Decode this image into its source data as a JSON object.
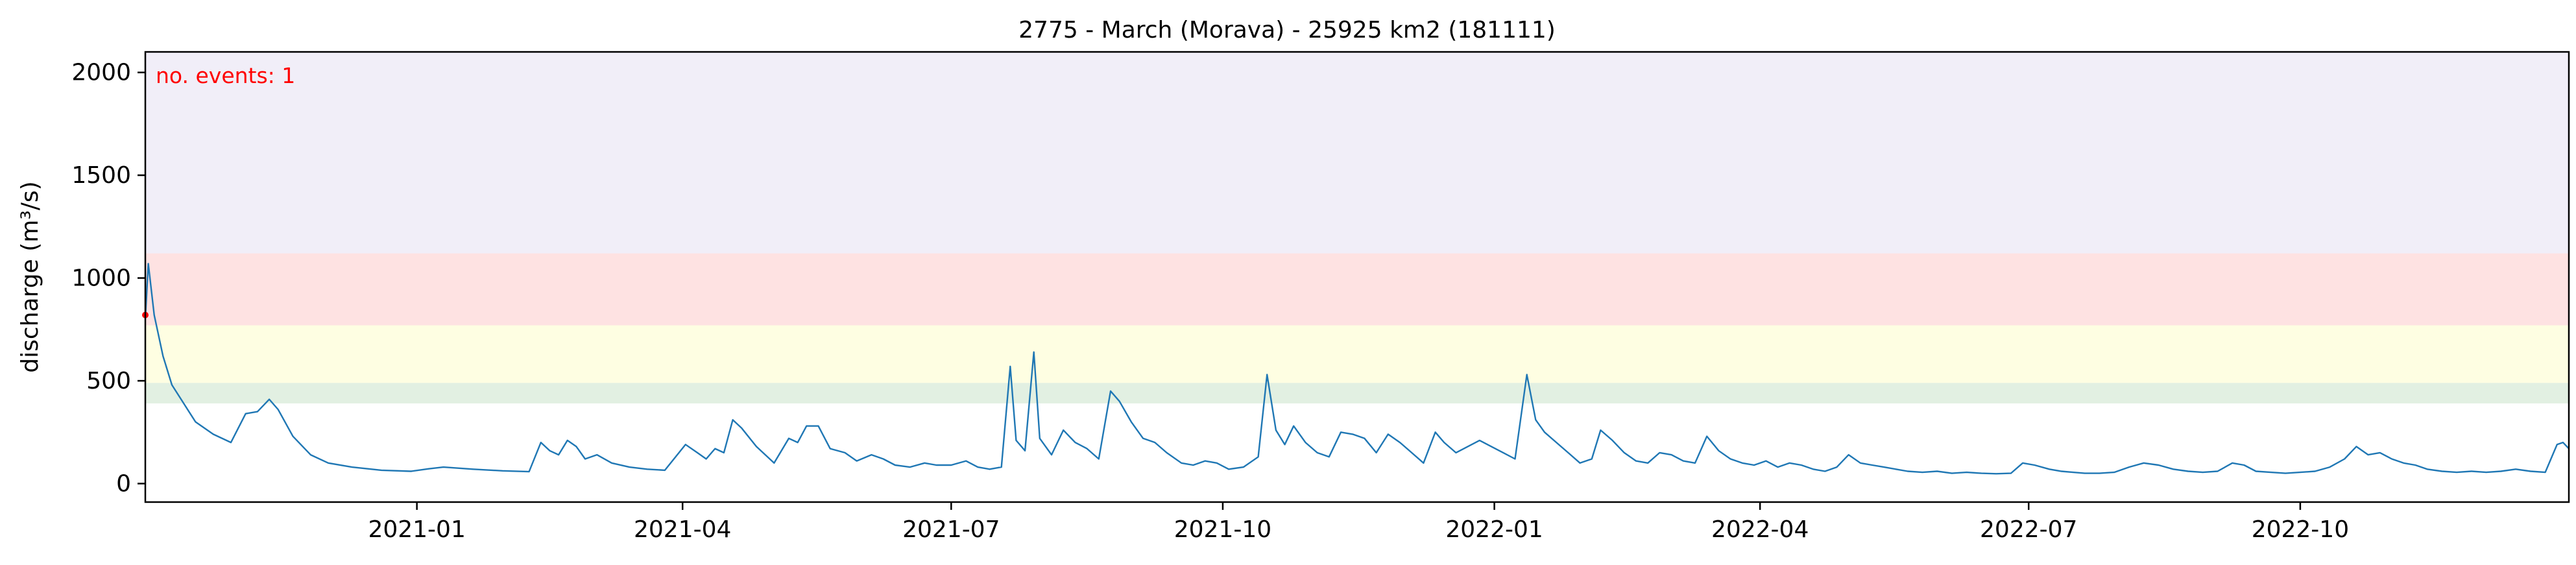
{
  "chart_data": {
    "type": "line",
    "title": "2775 - March (Morava) - 25925 km2 (181111)",
    "xlabel": "",
    "ylabel": "discharge (m³/s)",
    "ylim": [
      -90,
      2100
    ],
    "xlim": [
      "2020-10-01",
      "2022-12-31"
    ],
    "grid": false,
    "yticks": [
      0,
      500,
      1000,
      1500,
      2000
    ],
    "xticks": [
      {
        "date": "2021-01-01",
        "label": "2021-01"
      },
      {
        "date": "2021-04-01",
        "label": "2021-04"
      },
      {
        "date": "2021-07-01",
        "label": "2021-07"
      },
      {
        "date": "2021-10-01",
        "label": "2021-10"
      },
      {
        "date": "2022-01-01",
        "label": "2022-01"
      },
      {
        "date": "2022-04-01",
        "label": "2022-04"
      },
      {
        "date": "2022-07-01",
        "label": "2022-07"
      },
      {
        "date": "2022-10-01",
        "label": "2022-10"
      }
    ],
    "bands": [
      {
        "from": 390,
        "to": 490,
        "color": "#e2f0e2"
      },
      {
        "from": 490,
        "to": 770,
        "color": "#fefee2"
      },
      {
        "from": 770,
        "to": 1120,
        "color": "#fee2e2"
      },
      {
        "from": 1120,
        "to": 2100,
        "color": "#f1eef8"
      }
    ],
    "annotation": {
      "text": "no. events: 1",
      "color": "#ff0000"
    },
    "event_marker": {
      "x": "2020-10-01",
      "y": 820,
      "color": "#ff0000"
    },
    "series": [
      {
        "color": "#1f77b4",
        "points": [
          [
            "2020-10-01",
            800
          ],
          [
            "2020-10-02",
            1070
          ],
          [
            "2020-10-04",
            820
          ],
          [
            "2020-10-07",
            620
          ],
          [
            "2020-10-10",
            480
          ],
          [
            "2020-10-14",
            390
          ],
          [
            "2020-10-18",
            300
          ],
          [
            "2020-10-24",
            240
          ],
          [
            "2020-10-30",
            200
          ],
          [
            "2020-11-04",
            340
          ],
          [
            "2020-11-08",
            350
          ],
          [
            "2020-11-12",
            410
          ],
          [
            "2020-11-15",
            360
          ],
          [
            "2020-11-20",
            230
          ],
          [
            "2020-11-26",
            140
          ],
          [
            "2020-12-02",
            100
          ],
          [
            "2020-12-10",
            80
          ],
          [
            "2020-12-20",
            65
          ],
          [
            "2020-12-30",
            60
          ],
          [
            "2021-01-05",
            72
          ],
          [
            "2021-01-10",
            80
          ],
          [
            "2021-01-20",
            70
          ],
          [
            "2021-01-30",
            62
          ],
          [
            "2021-02-08",
            58
          ],
          [
            "2021-02-12",
            200
          ],
          [
            "2021-02-15",
            160
          ],
          [
            "2021-02-18",
            140
          ],
          [
            "2021-02-21",
            210
          ],
          [
            "2021-02-24",
            180
          ],
          [
            "2021-02-27",
            120
          ],
          [
            "2021-03-03",
            140
          ],
          [
            "2021-03-08",
            100
          ],
          [
            "2021-03-14",
            80
          ],
          [
            "2021-03-20",
            70
          ],
          [
            "2021-03-26",
            65
          ],
          [
            "2021-04-02",
            190
          ],
          [
            "2021-04-06",
            150
          ],
          [
            "2021-04-09",
            120
          ],
          [
            "2021-04-12",
            170
          ],
          [
            "2021-04-15",
            150
          ],
          [
            "2021-04-18",
            310
          ],
          [
            "2021-04-21",
            270
          ],
          [
            "2021-04-26",
            180
          ],
          [
            "2021-05-02",
            100
          ],
          [
            "2021-05-07",
            220
          ],
          [
            "2021-05-10",
            200
          ],
          [
            "2021-05-13",
            280
          ],
          [
            "2021-05-17",
            280
          ],
          [
            "2021-05-21",
            170
          ],
          [
            "2021-05-26",
            150
          ],
          [
            "2021-05-30",
            110
          ],
          [
            "2021-06-04",
            140
          ],
          [
            "2021-06-08",
            120
          ],
          [
            "2021-06-12",
            90
          ],
          [
            "2021-06-17",
            80
          ],
          [
            "2021-06-22",
            100
          ],
          [
            "2021-06-26",
            90
          ],
          [
            "2021-07-01",
            90
          ],
          [
            "2021-07-06",
            110
          ],
          [
            "2021-07-10",
            80
          ],
          [
            "2021-07-14",
            70
          ],
          [
            "2021-07-18",
            80
          ],
          [
            "2021-07-21",
            570
          ],
          [
            "2021-07-23",
            210
          ],
          [
            "2021-07-26",
            160
          ],
          [
            "2021-07-29",
            640
          ],
          [
            "2021-07-31",
            220
          ],
          [
            "2021-08-04",
            140
          ],
          [
            "2021-08-08",
            260
          ],
          [
            "2021-08-12",
            200
          ],
          [
            "2021-08-16",
            170
          ],
          [
            "2021-08-20",
            120
          ],
          [
            "2021-08-24",
            450
          ],
          [
            "2021-08-27",
            400
          ],
          [
            "2021-08-31",
            300
          ],
          [
            "2021-09-04",
            220
          ],
          [
            "2021-09-08",
            200
          ],
          [
            "2021-09-12",
            150
          ],
          [
            "2021-09-17",
            100
          ],
          [
            "2021-09-21",
            90
          ],
          [
            "2021-09-25",
            110
          ],
          [
            "2021-09-29",
            100
          ],
          [
            "2021-10-03",
            70
          ],
          [
            "2021-10-08",
            80
          ],
          [
            "2021-10-13",
            130
          ],
          [
            "2021-10-16",
            530
          ],
          [
            "2021-10-19",
            260
          ],
          [
            "2021-10-22",
            190
          ],
          [
            "2021-10-25",
            280
          ],
          [
            "2021-10-29",
            200
          ],
          [
            "2021-11-02",
            150
          ],
          [
            "2021-11-06",
            130
          ],
          [
            "2021-11-10",
            250
          ],
          [
            "2021-11-14",
            240
          ],
          [
            "2021-11-18",
            220
          ],
          [
            "2021-11-22",
            150
          ],
          [
            "2021-11-26",
            240
          ],
          [
            "2021-11-30",
            200
          ],
          [
            "2021-12-04",
            150
          ],
          [
            "2021-12-08",
            100
          ],
          [
            "2021-12-12",
            250
          ],
          [
            "2021-12-15",
            200
          ],
          [
            "2021-12-19",
            150
          ],
          [
            "2021-12-23",
            180
          ],
          [
            "2021-12-27",
            210
          ],
          [
            "2021-12-31",
            180
          ],
          [
            "2022-01-04",
            150
          ],
          [
            "2022-01-08",
            120
          ],
          [
            "2022-01-12",
            530
          ],
          [
            "2022-01-15",
            310
          ],
          [
            "2022-01-18",
            250
          ],
          [
            "2022-01-22",
            200
          ],
          [
            "2022-01-26",
            150
          ],
          [
            "2022-01-30",
            100
          ],
          [
            "2022-02-03",
            120
          ],
          [
            "2022-02-06",
            260
          ],
          [
            "2022-02-10",
            210
          ],
          [
            "2022-02-14",
            150
          ],
          [
            "2022-02-18",
            110
          ],
          [
            "2022-02-22",
            100
          ],
          [
            "2022-02-26",
            150
          ],
          [
            "2022-03-02",
            140
          ],
          [
            "2022-03-06",
            110
          ],
          [
            "2022-03-10",
            100
          ],
          [
            "2022-03-14",
            230
          ],
          [
            "2022-03-18",
            160
          ],
          [
            "2022-03-22",
            120
          ],
          [
            "2022-03-26",
            100
          ],
          [
            "2022-03-30",
            90
          ],
          [
            "2022-04-03",
            110
          ],
          [
            "2022-04-07",
            80
          ],
          [
            "2022-04-11",
            100
          ],
          [
            "2022-04-15",
            90
          ],
          [
            "2022-04-19",
            70
          ],
          [
            "2022-04-23",
            60
          ],
          [
            "2022-04-27",
            80
          ],
          [
            "2022-05-01",
            140
          ],
          [
            "2022-05-05",
            100
          ],
          [
            "2022-05-09",
            90
          ],
          [
            "2022-05-13",
            80
          ],
          [
            "2022-05-17",
            70
          ],
          [
            "2022-05-21",
            60
          ],
          [
            "2022-05-26",
            55
          ],
          [
            "2022-05-31",
            60
          ],
          [
            "2022-06-05",
            50
          ],
          [
            "2022-06-10",
            55
          ],
          [
            "2022-06-15",
            50
          ],
          [
            "2022-06-20",
            48
          ],
          [
            "2022-06-25",
            50
          ],
          [
            "2022-06-29",
            100
          ],
          [
            "2022-07-03",
            90
          ],
          [
            "2022-07-08",
            70
          ],
          [
            "2022-07-12",
            60
          ],
          [
            "2022-07-16",
            55
          ],
          [
            "2022-07-20",
            50
          ],
          [
            "2022-07-25",
            50
          ],
          [
            "2022-07-30",
            55
          ],
          [
            "2022-08-04",
            80
          ],
          [
            "2022-08-09",
            100
          ],
          [
            "2022-08-14",
            90
          ],
          [
            "2022-08-19",
            70
          ],
          [
            "2022-08-24",
            60
          ],
          [
            "2022-08-29",
            55
          ],
          [
            "2022-09-03",
            60
          ],
          [
            "2022-09-08",
            100
          ],
          [
            "2022-09-12",
            90
          ],
          [
            "2022-09-16",
            60
          ],
          [
            "2022-09-21",
            55
          ],
          [
            "2022-09-26",
            50
          ],
          [
            "2022-10-01",
            55
          ],
          [
            "2022-10-06",
            60
          ],
          [
            "2022-10-11",
            80
          ],
          [
            "2022-10-16",
            120
          ],
          [
            "2022-10-20",
            180
          ],
          [
            "2022-10-24",
            140
          ],
          [
            "2022-10-28",
            150
          ],
          [
            "2022-11-01",
            120
          ],
          [
            "2022-11-05",
            100
          ],
          [
            "2022-11-09",
            90
          ],
          [
            "2022-11-13",
            70
          ],
          [
            "2022-11-18",
            60
          ],
          [
            "2022-11-23",
            55
          ],
          [
            "2022-11-28",
            60
          ],
          [
            "2022-12-03",
            55
          ],
          [
            "2022-12-08",
            60
          ],
          [
            "2022-12-13",
            70
          ],
          [
            "2022-12-18",
            60
          ],
          [
            "2022-12-23",
            55
          ],
          [
            "2022-12-27",
            190
          ],
          [
            "2022-12-29",
            200
          ],
          [
            "2022-12-31",
            170
          ]
        ]
      }
    ]
  }
}
